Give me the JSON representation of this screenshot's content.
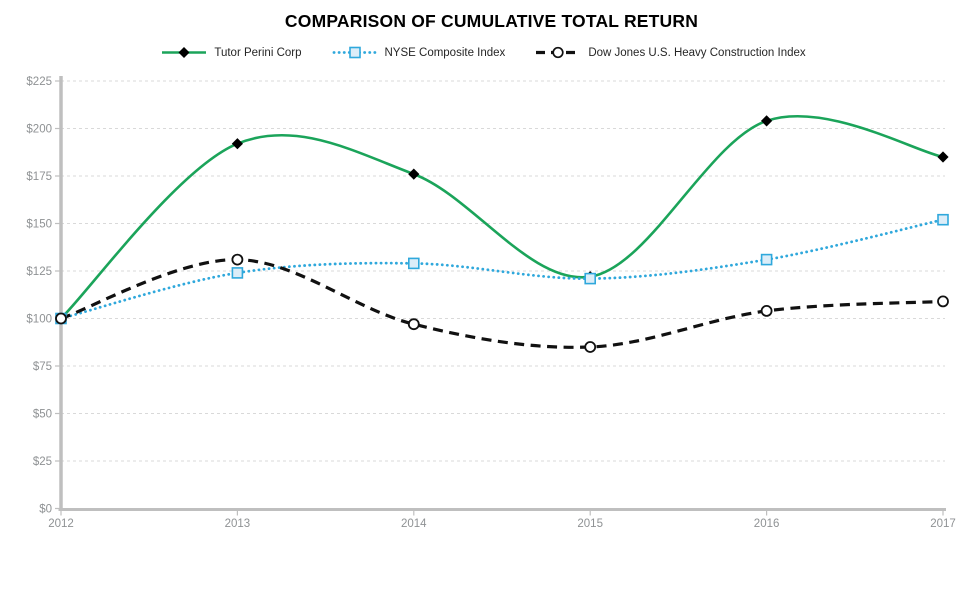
{
  "chart_data": {
    "type": "line",
    "title": "COMPARISON OF CUMULATIVE TOTAL RETURN",
    "x": [
      "2012",
      "2013",
      "2014",
      "2015",
      "2016",
      "2017"
    ],
    "series": [
      {
        "name": "Tutor Perini Corp",
        "values": [
          100,
          192,
          176,
          122,
          204,
          185
        ],
        "color": "#1ba45a",
        "line": "solid",
        "marker": "diamond",
        "marker_color": "#000000",
        "marker_fill": "#000000"
      },
      {
        "name": "NYSE Composite Index",
        "values": [
          100,
          124,
          129,
          121,
          131,
          152
        ],
        "color": "#2fa8dc",
        "line": "dotted",
        "marker": "square",
        "marker_color": "#2fa8dc",
        "marker_fill": "#dcedf8"
      },
      {
        "name": "Dow Jones U.S. Heavy Construction Index",
        "values": [
          100,
          131,
          97,
          85,
          104,
          109
        ],
        "color": "#111111",
        "line": "dashed",
        "marker": "circle",
        "marker_color": "#111111",
        "marker_fill": "#ffffff"
      }
    ],
    "ylim": [
      0,
      225
    ],
    "ytick_step": 25,
    "ytick_prefix": "$",
    "xlabel": "",
    "ylabel": "",
    "legend_position": "top",
    "grid": "horizontal-dashed",
    "smoothed_lines": true,
    "colors": {
      "gridline": "#d9d9d9",
      "axis": "#bfbfbf",
      "axis_text": "#8f9294",
      "legend_text": "#262626",
      "title_text": "#000000",
      "background": "#ffffff"
    }
  }
}
